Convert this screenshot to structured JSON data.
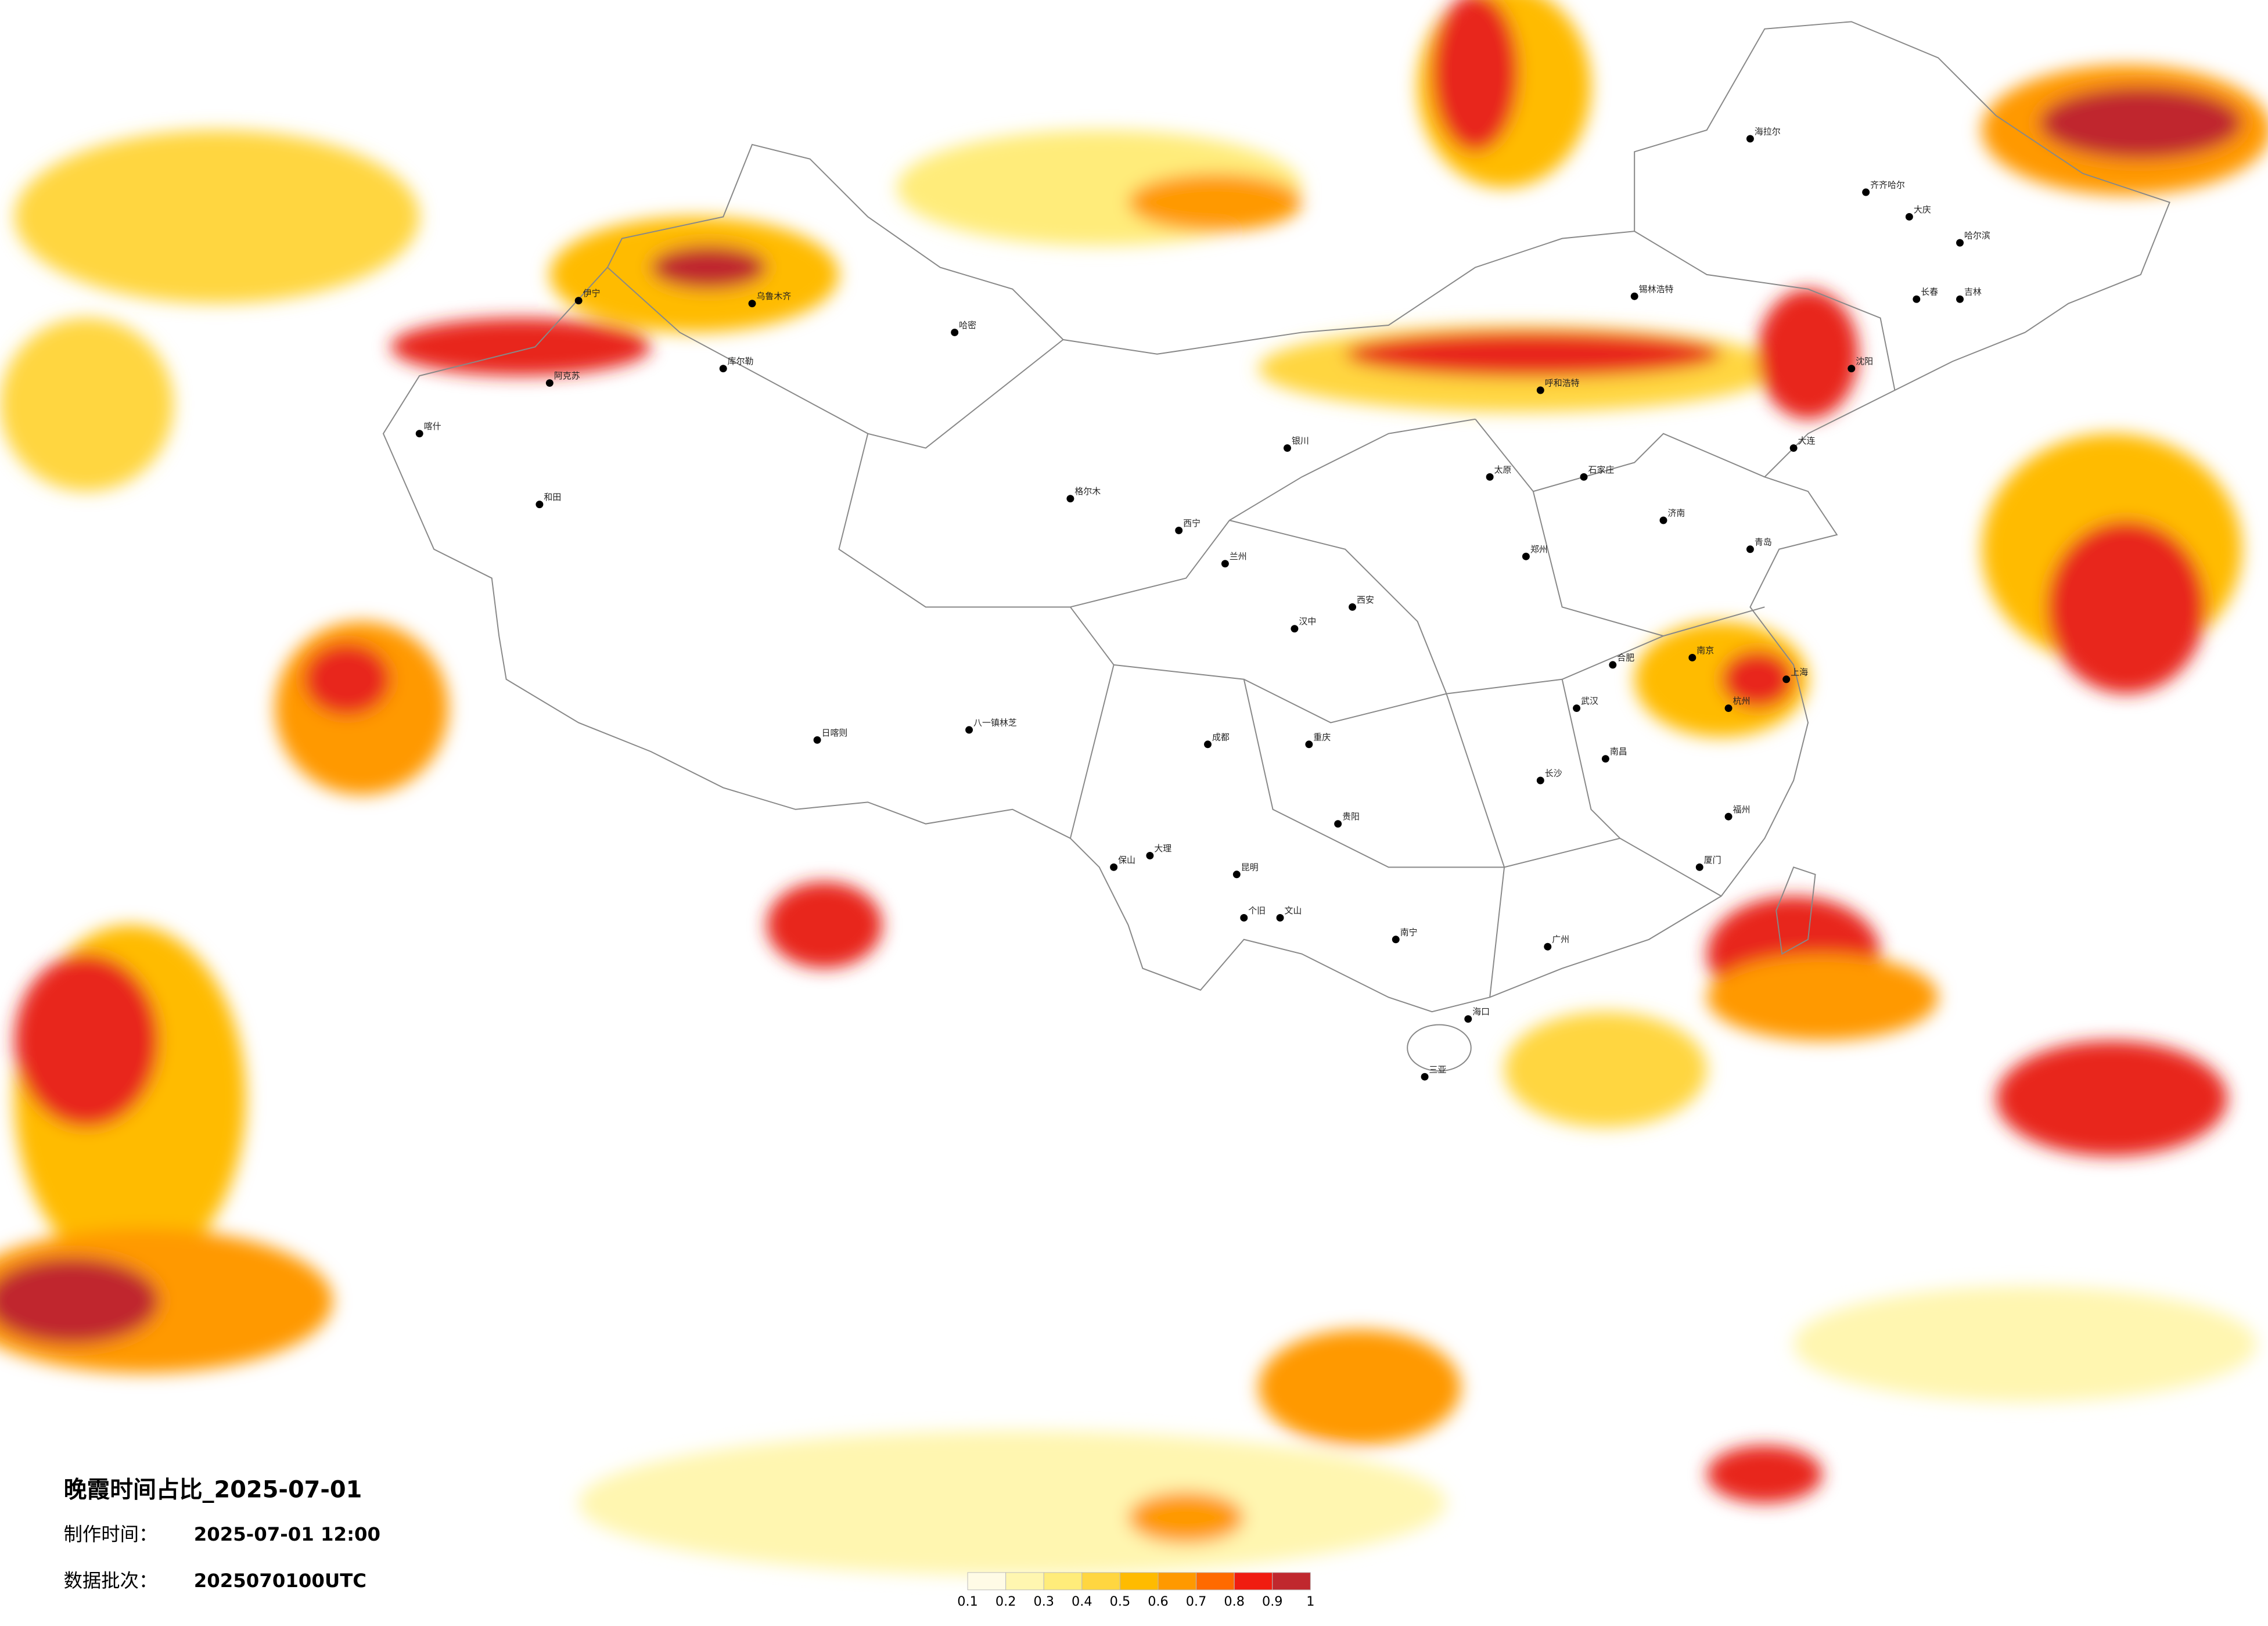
{
  "title": "晚霞时间占比_2025-07-01",
  "made_label": "制作时间：",
  "made_time": "2025-07-01 12:00",
  "batch_label": "数据批次：",
  "batch": "2025070100UTC",
  "legend": {
    "ticks": [
      0.1,
      0.2,
      0.3,
      0.4,
      0.5,
      0.6,
      0.7,
      0.8,
      0.9,
      1
    ],
    "colors": [
      "#fffbe6",
      "#fff6b0",
      "#ffec7a",
      "#ffd640",
      "#ffbb00",
      "#ff9900",
      "#ff6a00",
      "#f01c10",
      "#c0282e"
    ]
  },
  "cities": [
    "海拉尔",
    "齐齐哈尔",
    "大庆",
    "哈尔滨",
    "长春",
    "吉林",
    "沈阳",
    "大连",
    "锡林浩特",
    "呼和浩特",
    "乌鲁木齐",
    "伊宁",
    "阿克苏",
    "喀什",
    "和田",
    "库尔勒",
    "哈密",
    "格尔木",
    "日喀则",
    "八一镇林芝",
    "西宁",
    "兰州",
    "银川",
    "太原",
    "石家庄",
    "济南",
    "青岛",
    "郑州",
    "西安",
    "汉中",
    "成都",
    "重庆",
    "贵阳",
    "昆明",
    "大理",
    "保山",
    "个旧",
    "文山",
    "南宁",
    "海口",
    "三亚",
    "武汉",
    "长沙",
    "南昌",
    "合肥",
    "南京",
    "上海",
    "杭州",
    "福州",
    "厦门",
    "广州"
  ]
}
